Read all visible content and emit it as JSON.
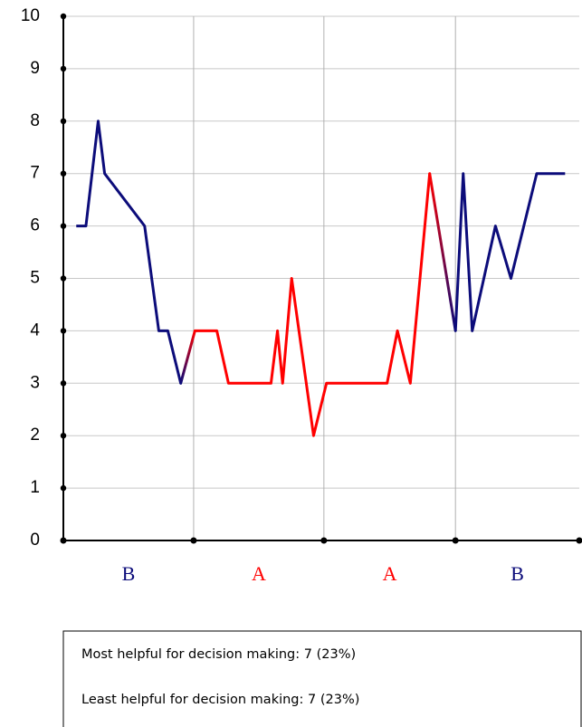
{
  "chart_data": {
    "type": "line",
    "xlim": [
      0,
      40
    ],
    "ylim": [
      0,
      10
    ],
    "yticks": [
      0,
      1,
      2,
      3,
      4,
      5,
      6,
      7,
      8,
      9,
      10
    ],
    "grid": true,
    "phases": [
      {
        "label": "B",
        "color": "#0c0c7a",
        "start": 0,
        "end": 10.1
      },
      {
        "label": "A",
        "color": "#ff0000",
        "start": 10.1,
        "end": 20.2
      },
      {
        "label": "A",
        "color": "#ff0000",
        "start": 20.2,
        "end": 30.4
      },
      {
        "label": "B",
        "color": "#0c0c7a",
        "start": 30.4,
        "end": 40
      }
    ],
    "series": [
      {
        "color": "#0c0c7a",
        "x": [
          1,
          1.75,
          2.7,
          3.2,
          6.3,
          7.4,
          8.1,
          9.1
        ],
        "values": [
          6,
          6,
          8,
          7,
          6,
          4,
          4,
          3
        ]
      },
      {
        "color": "#ff0000",
        "x": [
          10.2,
          11.9,
          12.8,
          16.1,
          16.6,
          17,
          17.7,
          19.4,
          20.4,
          25.1,
          25.9,
          26.9,
          28.4
        ],
        "values": [
          4,
          4,
          3,
          3,
          4,
          3,
          5,
          2,
          3,
          3,
          4,
          3,
          7
        ]
      },
      {
        "color": "#0c0c7a",
        "x": [
          30.4,
          31,
          31.7,
          33.5,
          34.7,
          36.7,
          38.9
        ],
        "values": [
          4,
          7,
          4,
          6,
          5,
          7,
          7
        ]
      }
    ]
  },
  "notes": [
    "Most helpful for decision making: 7 (23%)",
    "Least helpful for decision making: 7 (23%)"
  ]
}
